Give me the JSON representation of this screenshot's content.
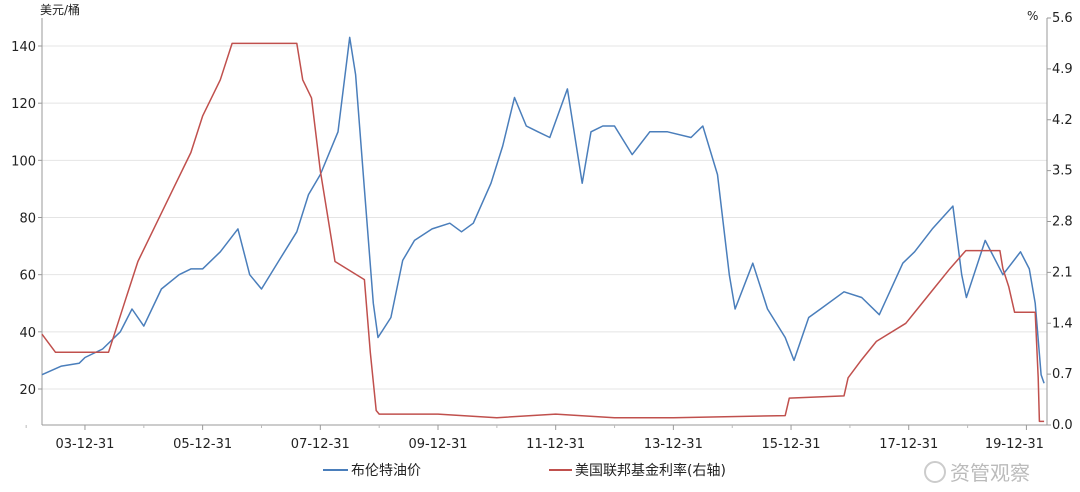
{
  "chart_data": {
    "type": "line",
    "title": "",
    "left_axis": {
      "unit_label": "美元/桶",
      "ylim": [
        7.4,
        149.8
      ],
      "ticks": [
        20,
        40,
        60,
        80,
        100,
        120,
        140
      ],
      "tick_labels": [
        "20",
        "40",
        "60",
        "80",
        "100",
        "120",
        "140"
      ]
    },
    "right_axis": {
      "unit_label": "%",
      "ylim": [
        0.0,
        5.6
      ],
      "ticks": [
        0,
        0.7,
        1.4,
        2.1,
        2.8,
        3.5,
        4.2,
        4.9,
        5.6
      ],
      "tick_labels": [
        "0.0",
        "0.7",
        "1.4",
        "2.1",
        "2.8",
        "3.5",
        "4.2",
        "4.9",
        "5.6"
      ]
    },
    "x_axis": {
      "xlim": [
        2003.27,
        2020.35
      ],
      "ticks": [
        2004.0,
        2006.0,
        2008.0,
        2010.0,
        2012.0,
        2014.0,
        2016.0,
        2018.0,
        2020.0
      ],
      "tick_labels": [
        "03-12-31",
        "05-12-31",
        "07-12-31",
        "09-12-31",
        "11-12-31",
        "13-12-31",
        "15-12-31",
        "17-12-31",
        "19-12-31"
      ]
    },
    "grid": "horizontal",
    "legend_position": "bottom",
    "series": [
      {
        "name": "布伦特油价",
        "axis": "left",
        "color": "#4a7ebb",
        "points": [
          [
            2003.27,
            25
          ],
          [
            2003.6,
            28
          ],
          [
            2003.9,
            29
          ],
          [
            2004.0,
            31
          ],
          [
            2004.3,
            34
          ],
          [
            2004.6,
            40
          ],
          [
            2004.8,
            48
          ],
          [
            2005.0,
            42
          ],
          [
            2005.3,
            55
          ],
          [
            2005.6,
            60
          ],
          [
            2005.8,
            62
          ],
          [
            2006.0,
            62
          ],
          [
            2006.3,
            68
          ],
          [
            2006.6,
            76
          ],
          [
            2006.8,
            60
          ],
          [
            2007.0,
            55
          ],
          [
            2007.3,
            65
          ],
          [
            2007.6,
            75
          ],
          [
            2007.8,
            88
          ],
          [
            2008.0,
            95
          ],
          [
            2008.3,
            110
          ],
          [
            2008.5,
            143
          ],
          [
            2008.6,
            130
          ],
          [
            2008.75,
            90
          ],
          [
            2008.9,
            50
          ],
          [
            2008.98,
            38
          ],
          [
            2009.2,
            45
          ],
          [
            2009.4,
            65
          ],
          [
            2009.6,
            72
          ],
          [
            2009.9,
            76
          ],
          [
            2010.2,
            78
          ],
          [
            2010.4,
            75
          ],
          [
            2010.6,
            78
          ],
          [
            2010.9,
            92
          ],
          [
            2011.1,
            105
          ],
          [
            2011.3,
            122
          ],
          [
            2011.5,
            112
          ],
          [
            2011.7,
            110
          ],
          [
            2011.9,
            108
          ],
          [
            2012.2,
            125
          ],
          [
            2012.45,
            92
          ],
          [
            2012.6,
            110
          ],
          [
            2012.8,
            112
          ],
          [
            2013.0,
            112
          ],
          [
            2013.3,
            102
          ],
          [
            2013.6,
            110
          ],
          [
            2013.9,
            110
          ],
          [
            2014.3,
            108
          ],
          [
            2014.5,
            112
          ],
          [
            2014.75,
            95
          ],
          [
            2014.95,
            60
          ],
          [
            2015.05,
            48
          ],
          [
            2015.35,
            64
          ],
          [
            2015.6,
            48
          ],
          [
            2015.9,
            38
          ],
          [
            2016.05,
            30
          ],
          [
            2016.3,
            45
          ],
          [
            2016.5,
            48
          ],
          [
            2016.9,
            54
          ],
          [
            2017.2,
            52
          ],
          [
            2017.5,
            46
          ],
          [
            2017.9,
            64
          ],
          [
            2018.1,
            68
          ],
          [
            2018.4,
            76
          ],
          [
            2018.75,
            84
          ],
          [
            2018.9,
            60
          ],
          [
            2018.98,
            52
          ],
          [
            2019.3,
            72
          ],
          [
            2019.6,
            60
          ],
          [
            2019.9,
            68
          ],
          [
            2020.05,
            62
          ],
          [
            2020.15,
            50
          ],
          [
            2020.25,
            25
          ],
          [
            2020.3,
            22
          ]
        ]
      },
      {
        "name": "美国联邦基金利率(右轴)",
        "axis": "right",
        "color": "#c0504d",
        "points": [
          [
            2003.27,
            1.25
          ],
          [
            2003.5,
            1.0
          ],
          [
            2004.4,
            1.0
          ],
          [
            2004.5,
            1.25
          ],
          [
            2004.7,
            1.75
          ],
          [
            2004.9,
            2.25
          ],
          [
            2005.2,
            2.75
          ],
          [
            2005.5,
            3.25
          ],
          [
            2005.8,
            3.75
          ],
          [
            2006.0,
            4.25
          ],
          [
            2006.3,
            4.75
          ],
          [
            2006.5,
            5.25
          ],
          [
            2007.6,
            5.25
          ],
          [
            2007.7,
            4.75
          ],
          [
            2007.85,
            4.5
          ],
          [
            2008.0,
            3.5
          ],
          [
            2008.1,
            3.0
          ],
          [
            2008.25,
            2.25
          ],
          [
            2008.75,
            2.0
          ],
          [
            2008.85,
            1.0
          ],
          [
            2008.95,
            0.2
          ],
          [
            2009.0,
            0.15
          ],
          [
            2010.0,
            0.15
          ],
          [
            2011.0,
            0.1
          ],
          [
            2012.0,
            0.15
          ],
          [
            2013.0,
            0.1
          ],
          [
            2014.0,
            0.1
          ],
          [
            2015.9,
            0.13
          ],
          [
            2015.97,
            0.37
          ],
          [
            2016.9,
            0.4
          ],
          [
            2016.97,
            0.65
          ],
          [
            2017.2,
            0.9
          ],
          [
            2017.45,
            1.15
          ],
          [
            2017.95,
            1.4
          ],
          [
            2018.2,
            1.65
          ],
          [
            2018.45,
            1.9
          ],
          [
            2018.7,
            2.15
          ],
          [
            2018.97,
            2.4
          ],
          [
            2019.55,
            2.4
          ],
          [
            2019.6,
            2.15
          ],
          [
            2019.7,
            1.9
          ],
          [
            2019.8,
            1.55
          ],
          [
            2020.15,
            1.55
          ],
          [
            2020.2,
            0.65
          ],
          [
            2020.22,
            0.05
          ],
          [
            2020.3,
            0.05
          ]
        ]
      }
    ]
  },
  "watermark": "资管观察"
}
